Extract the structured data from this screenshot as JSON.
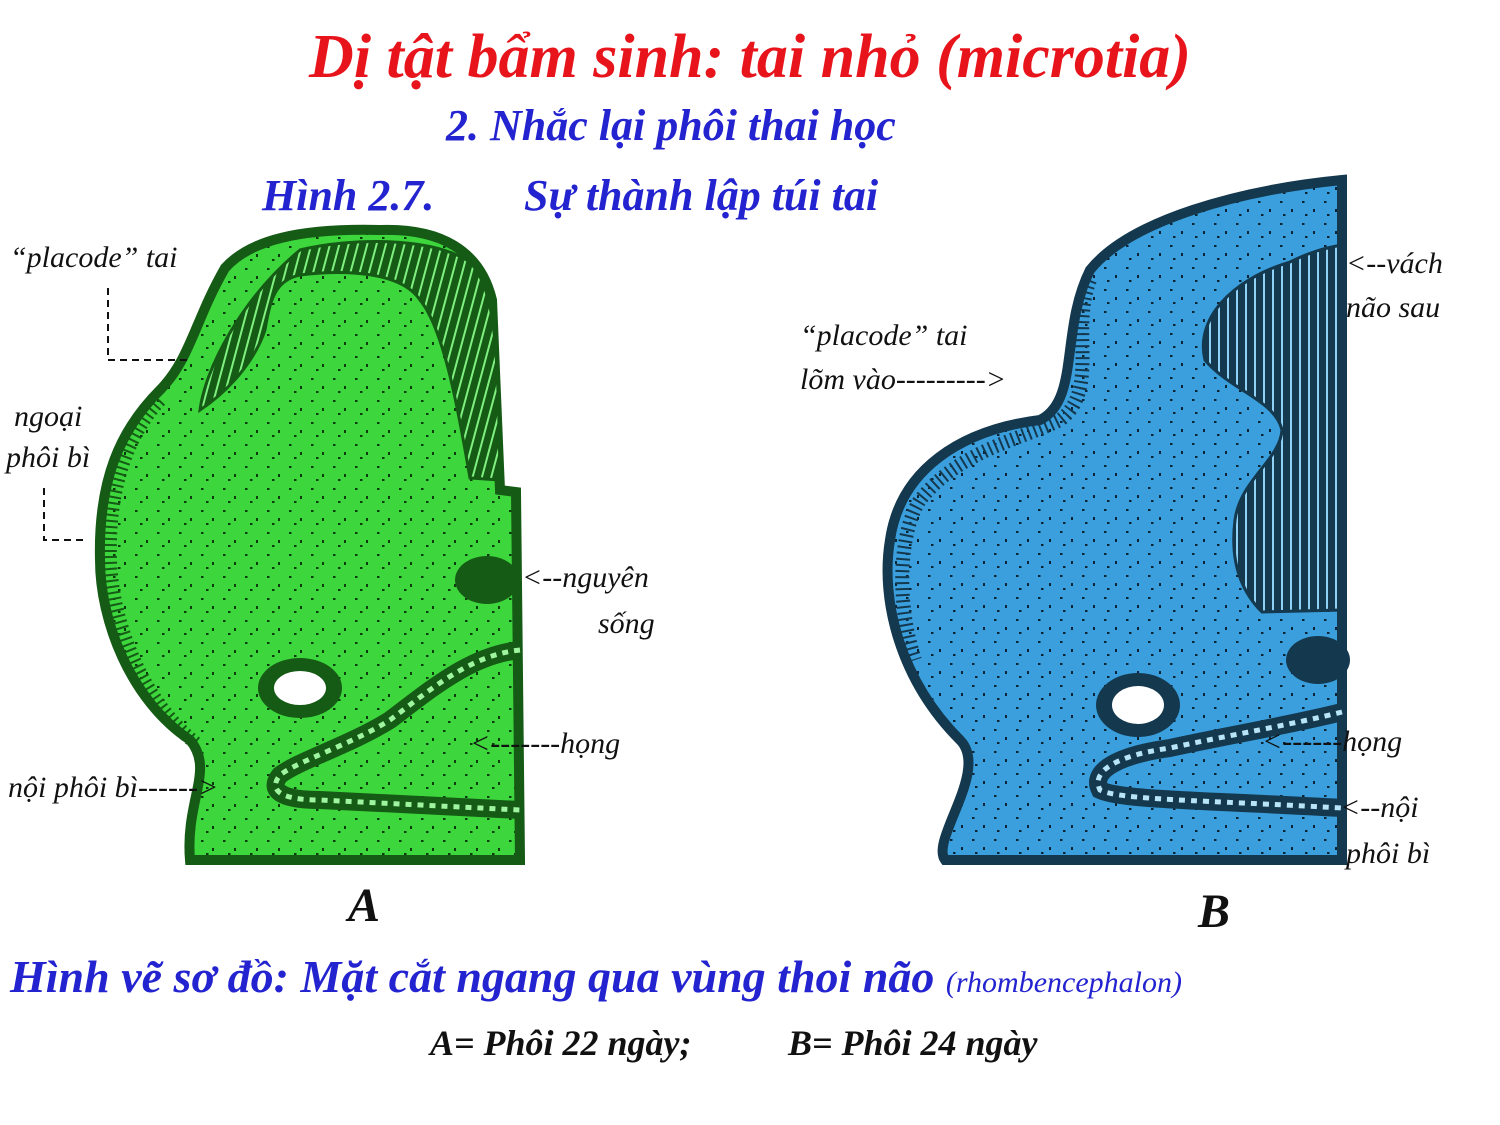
{
  "header": {
    "title": "Dị tật bẩm sinh: tai nhỏ (microtia)",
    "subtitle": "2. Nhắc lại phôi thai học",
    "figure_number": "Hình 2.7.",
    "figure_title": "Sự thành lập túi tai"
  },
  "panel_a": {
    "letter": "A",
    "fill_color": "#3dd63d",
    "dark_color": "#155a15",
    "labels": {
      "placode": "“placode” tai",
      "placode_arrow": "----->",
      "ectoderm_line1": "ngoại",
      "ectoderm_line2": "phôi bì",
      "ectoderm_arrow": "-->",
      "notochord_line1": "<--nguyên",
      "notochord_line2": "sống",
      "pharynx": "<-------họng",
      "endoderm": "nội phôi bì------>"
    }
  },
  "panel_b": {
    "letter": "B",
    "fill_color": "#3a9fdc",
    "dark_color": "#14384e",
    "labels": {
      "wall_line1": "<--vách",
      "wall_line2": "não sau",
      "placode_line1": "“placode” tai",
      "placode_line2": "lõm vào--------->",
      "pharynx": "<------họng",
      "endoderm_line1": "<--nội",
      "endoderm_line2": "phôi bì"
    }
  },
  "caption": {
    "main": "Hình vẽ sơ đồ: Mặt cắt ngang qua vùng thoi não",
    "latin": "(rhombencephalon)"
  },
  "legend": {
    "a": "A= Phôi 22 ngày;",
    "b": "B= Phôi 24 ngày"
  }
}
